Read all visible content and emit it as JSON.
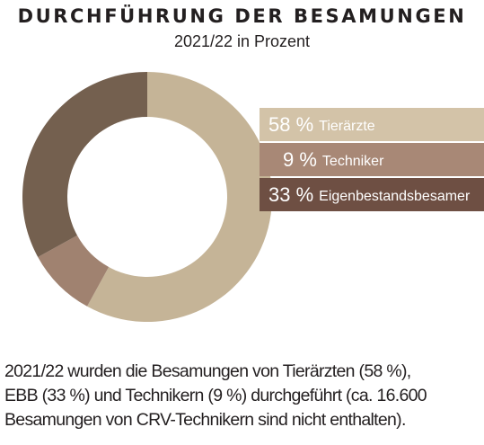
{
  "title": "DURCHFÜHRUNG DER BESAMUNGEN",
  "subtitle": "2021/22 in Prozent",
  "chart_data": {
    "type": "pie",
    "variant": "donut",
    "title": "DURCHFÜHRUNG DER BESAMUNGEN",
    "subtitle": "2021/22 in Prozent",
    "categories": [
      "Tierärzte",
      "Techniker",
      "Eigenbestandsbesamer"
    ],
    "values": [
      58,
      9,
      33
    ],
    "unit": "%",
    "colors": [
      "#c5b497",
      "#a08270",
      "#74604f"
    ],
    "legend_colors": [
      "#d3c3a8",
      "#a88876",
      "#6e4f43"
    ],
    "legend": [
      {
        "pct": "58 %",
        "name": "Tierärzte"
      },
      {
        "pct": "9 %",
        "name": "Techniker"
      },
      {
        "pct": "33 %",
        "name": "Eigenbestandsbesamer"
      }
    ],
    "legend_placement": "right"
  },
  "caption": {
    "lines": [
      "2021/22 wurden die Besamungen von Tierärzten (58 %),",
      "EBB (33 %) und Technikern (9 %) durchgeführt (ca. 16.600",
      "Besamungen von CRV-Technikern sind nicht enthalten)."
    ]
  }
}
